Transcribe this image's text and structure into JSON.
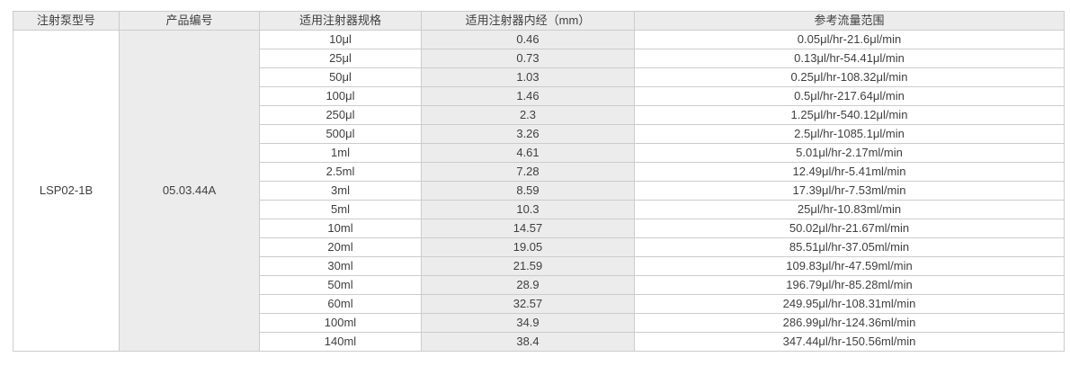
{
  "table": {
    "headers": [
      "注射泵型号",
      "产品编号",
      "适用注射器规格",
      "适用注射器内经（mm）",
      "参考流量范围"
    ],
    "pump_model": "LSP02-1B",
    "product_code": "05.03.44A",
    "rows": [
      {
        "spec": "10μl",
        "diameter": "0.46",
        "flow": "0.05μl/hr-21.6μl/min"
      },
      {
        "spec": "25μl",
        "diameter": "0.73",
        "flow": "0.13μl/hr-54.41μl/min"
      },
      {
        "spec": "50μl",
        "diameter": "1.03",
        "flow": "0.25μl/hr-108.32μl/min"
      },
      {
        "spec": "100μl",
        "diameter": "1.46",
        "flow": "0.5μl/hr-217.64μl/min"
      },
      {
        "spec": "250μl",
        "diameter": "2.3",
        "flow": "1.25μl/hr-540.12μl/min"
      },
      {
        "spec": "500μl",
        "diameter": "3.26",
        "flow": "2.5μl/hr-1085.1μl/min"
      },
      {
        "spec": "1ml",
        "diameter": "4.61",
        "flow": "5.01μl/hr-2.17ml/min"
      },
      {
        "spec": "2.5ml",
        "diameter": "7.28",
        "flow": "12.49μl/hr-5.41ml/min"
      },
      {
        "spec": "3ml",
        "diameter": "8.59",
        "flow": "17.39μl/hr-7.53ml/min"
      },
      {
        "spec": "5ml",
        "diameter": "10.3",
        "flow": "25μl/hr-10.83ml/min"
      },
      {
        "spec": "10ml",
        "diameter": "14.57",
        "flow": "50.02μl/hr-21.67ml/min"
      },
      {
        "spec": "20ml",
        "diameter": "19.05",
        "flow": "85.51μl/hr-37.05ml/min"
      },
      {
        "spec": "30ml",
        "diameter": "21.59",
        "flow": "109.83μl/hr-47.59ml/min"
      },
      {
        "spec": "50ml",
        "diameter": "28.9",
        "flow": "196.79μl/hr-85.28ml/min"
      },
      {
        "spec": "60ml",
        "diameter": "32.57",
        "flow": "249.95μl/hr-108.31ml/min"
      },
      {
        "spec": "100ml",
        "diameter": "34.9",
        "flow": "286.99μl/hr-124.36ml/min"
      },
      {
        "spec": "140ml",
        "diameter": "38.4",
        "flow": "347.44μl/hr-150.56ml/min"
      }
    ]
  },
  "colors": {
    "header_background": "#ececec",
    "shaded_cell_background": "#ececec",
    "border": "#cccccc",
    "text": "#3f3f3f"
  }
}
